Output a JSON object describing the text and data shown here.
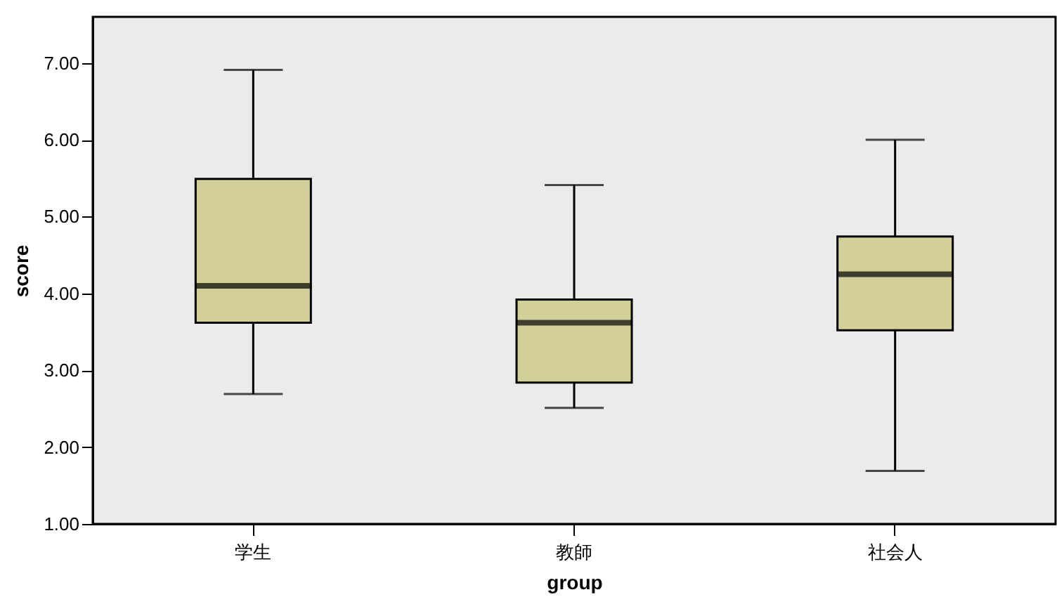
{
  "chart_data": {
    "type": "box",
    "xlabel": "group",
    "ylabel": "score",
    "categories": [
      "学生",
      "教師",
      "社会人"
    ],
    "series": [
      {
        "color": "#d3cf98",
        "boxes": [
          {
            "low": 2.69,
            "q1": 3.62,
            "median": 4.1,
            "q3": 5.49,
            "high": 6.91
          },
          {
            "low": 2.51,
            "q1": 2.84,
            "median": 3.62,
            "q3": 3.92,
            "high": 5.41
          },
          {
            "low": 1.69,
            "q1": 3.52,
            "median": 4.25,
            "q3": 4.74,
            "high": 6.0
          }
        ]
      }
    ],
    "ylim": [
      1,
      7.6
    ],
    "yticks": [
      {
        "value": 1,
        "label": "1.00"
      },
      {
        "value": 2,
        "label": "2.00"
      },
      {
        "value": 3,
        "label": "3.00"
      },
      {
        "value": 4,
        "label": "4.00"
      },
      {
        "value": 5,
        "label": "5.00"
      },
      {
        "value": 6,
        "label": "6.00"
      },
      {
        "value": 7,
        "label": "7.00"
      }
    ],
    "grid": false
  }
}
